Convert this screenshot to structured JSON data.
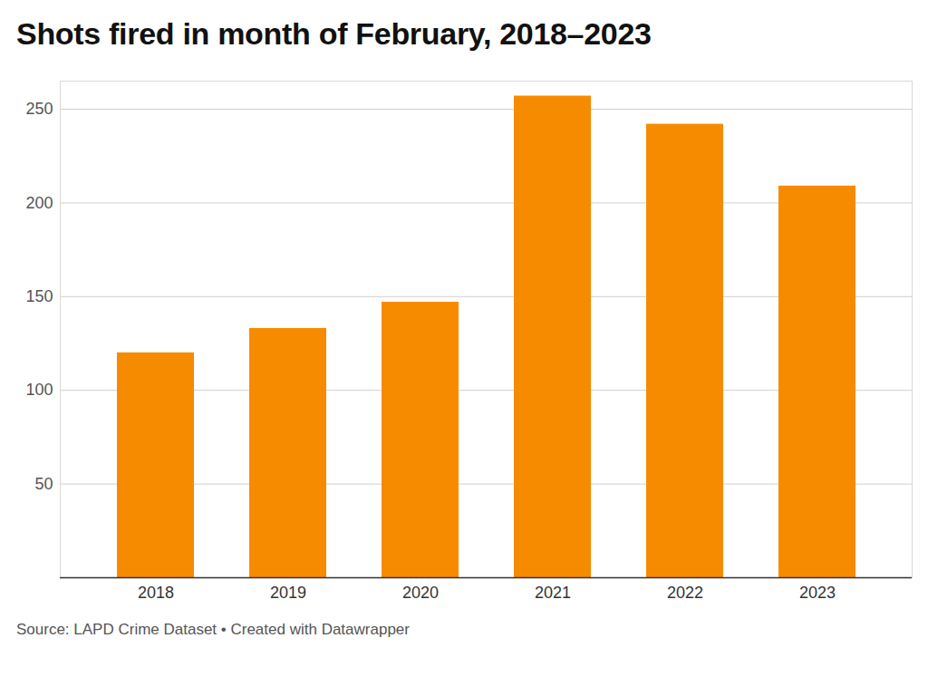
{
  "chart_data": {
    "type": "bar",
    "title": "Shots fired in month of February, 2018–2023",
    "source": "Source: LAPD Crime Dataset • Created with Datawrapper",
    "categories": [
      "2018",
      "2019",
      "2020",
      "2021",
      "2022",
      "2023"
    ],
    "values": [
      120,
      133,
      147,
      257,
      242,
      209
    ],
    "color": "#f68b00",
    "ylim": [
      0,
      265
    ],
    "yticks": [
      50,
      100,
      150,
      200,
      250
    ],
    "grid": true
  }
}
